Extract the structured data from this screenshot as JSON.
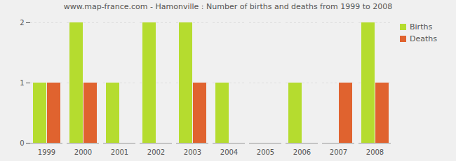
{
  "chart_data": {
    "type": "bar",
    "title": "www.map-france.com - Hamonville : Number of births and deaths from 1999 to 2008",
    "categories": [
      "1999",
      "2000",
      "2001",
      "2002",
      "2003",
      "2004",
      "2005",
      "2006",
      "2007",
      "2008"
    ],
    "series": [
      {
        "name": "Births",
        "color": "#b5dc2f",
        "values": [
          1,
          2,
          1,
          2,
          2,
          1,
          0,
          1,
          0,
          2
        ]
      },
      {
        "name": "Deaths",
        "color": "#e0632f",
        "values": [
          1,
          1,
          0,
          0,
          1,
          0,
          0,
          0,
          1,
          1
        ]
      }
    ],
    "ylim": [
      0,
      2
    ],
    "yticks": [
      0,
      1,
      2
    ],
    "grid": true,
    "legend": "top-right"
  }
}
